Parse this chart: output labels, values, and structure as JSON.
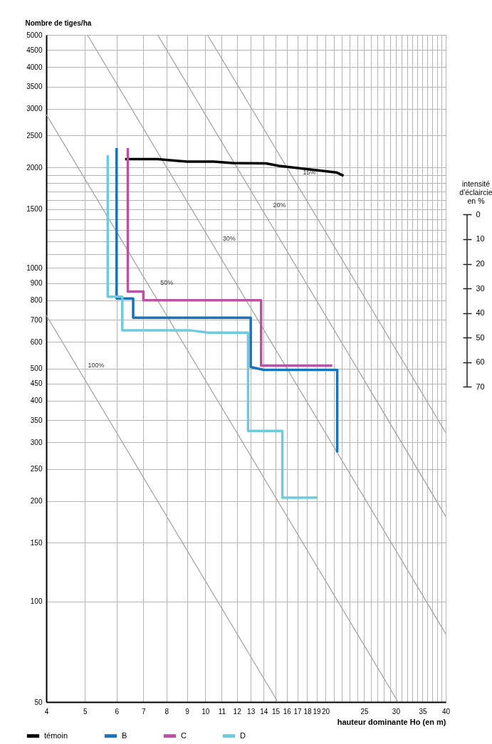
{
  "chart_data": {
    "type": "line",
    "xlabel": "hauteur dominante Ho (en m)",
    "ylabel": "Nombre de tiges/ha",
    "y2label": "intensité d'éclaircie en %",
    "log": "xy",
    "grid": true,
    "legend": "bottom",
    "xlim": [
      4,
      40
    ],
    "ylim": [
      50,
      5000
    ],
    "xticks": [
      4,
      5,
      6,
      7,
      8,
      9,
      10,
      11,
      12,
      13,
      14,
      15,
      16,
      17,
      18,
      19,
      20,
      {
        "value": 21,
        "label": null
      },
      {
        "value": 22,
        "label": null
      },
      {
        "value": 23,
        "label": null
      },
      {
        "value": 24,
        "label": null
      },
      25,
      {
        "value": 26,
        "label": null
      },
      {
        "value": 27,
        "label": null
      },
      {
        "value": 28,
        "label": null
      },
      {
        "value": 29,
        "label": null
      },
      30,
      {
        "value": 31,
        "label": null
      },
      {
        "value": 32,
        "label": null
      },
      {
        "value": 33,
        "label": null
      },
      {
        "value": 34,
        "label": null
      },
      35,
      {
        "value": 36,
        "label": null
      },
      {
        "value": 37,
        "label": null
      },
      {
        "value": 38,
        "label": null
      },
      {
        "value": 39,
        "label": null
      },
      40
    ],
    "yticks": [
      50,
      100,
      150,
      200,
      250,
      300,
      350,
      400,
      450,
      500,
      600,
      700,
      800,
      900,
      1000,
      {
        "value": 1100,
        "label": null
      },
      {
        "value": 1200,
        "label": null
      },
      {
        "value": 1300,
        "label": null
      },
      {
        "value": 1400,
        "label": null
      },
      1500,
      {
        "value": 1600,
        "label": null
      },
      {
        "value": 1700,
        "label": null
      },
      {
        "value": 1800,
        "label": null
      },
      {
        "value": 1900,
        "label": null
      },
      2000,
      2500,
      3000,
      3500,
      4000,
      4500,
      5000
    ],
    "y2lim": [
      198,
      -73
    ],
    "y2ticks": [
      0,
      10,
      20,
      30,
      40,
      50,
      60,
      70
    ],
    "series": [
      {
        "color": "#a6a6a6",
        "x": [
          4,
          15.2
        ],
        "values": [
          722,
          50
        ]
      },
      {
        "color": "#a6a6a6",
        "x": [
          4,
          30.4
        ],
        "values": [
          2887,
          50
        ]
      },
      {
        "color": "#a6a6a6",
        "x": [
          5.07,
          40
        ],
        "values": [
          5000,
          80
        ]
      },
      {
        "color": "#a6a6a6",
        "x": [
          7.6,
          40
        ],
        "values": [
          5000,
          180
        ]
      },
      {
        "color": "#a6a6a6",
        "x": [
          10.13,
          40
        ],
        "values": [
          5000,
          321
        ]
      },
      {
        "name": "témoin",
        "color": "#000000",
        "x": [
          6.3,
          7.0,
          7.6,
          9.0,
          10.5,
          11.7,
          14.2,
          15.3,
          21.3,
          22.2
        ],
        "values": [
          2120,
          2120,
          2120,
          2085,
          2085,
          2065,
          2060,
          2025,
          1935,
          1890
        ]
      },
      {
        "name": "B",
        "color": "#1a72b8",
        "x": [
          6.0,
          6.0,
          6.6,
          6.6,
          13.0,
          13.0,
          14.0,
          21.4,
          21.4
        ],
        "values": [
          2290,
          810,
          810,
          710,
          710,
          505,
          495,
          495,
          280
        ]
      },
      {
        "name": "C",
        "color": "#b9539f",
        "x": [
          6.4,
          6.4,
          7.0,
          7.0,
          13.8,
          13.8,
          20.8
        ],
        "values": [
          2290,
          850,
          850,
          800,
          800,
          510,
          510
        ]
      },
      {
        "name": "D",
        "color": "#6dcbdd",
        "x": [
          5.7,
          5.7,
          6.2,
          6.2,
          9.2,
          10.2,
          12.8,
          12.8,
          15.6,
          15.6,
          19.1
        ],
        "values": [
          2180,
          820,
          820,
          650,
          650,
          640,
          640,
          325,
          325,
          205,
          205
        ]
      }
    ],
    "annotations": [
      {
        "text": "15%",
        "x": 17.0,
        "y": 1776
      },
      {
        "text": "20%",
        "x": 14.3,
        "y": 1412
      },
      {
        "text": "30%",
        "x": 10.7,
        "y": 1121
      },
      {
        "text": "50%",
        "x": 7.47,
        "y": 828
      },
      {
        "text": "100%",
        "x": 4.97,
        "y": 467
      }
    ]
  }
}
